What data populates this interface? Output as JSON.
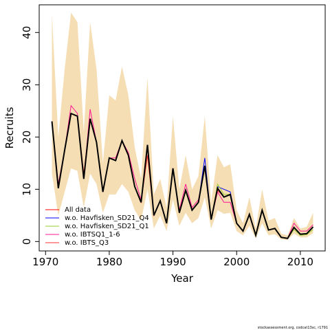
{
  "chart_data": {
    "type": "line",
    "x_label": "Year",
    "y_label": "Recruits",
    "footer": "stockassessment.org, codcat13sc, r1791",
    "x": [
      1971,
      1972,
      1973,
      1974,
      1975,
      1976,
      1977,
      1978,
      1979,
      1980,
      1981,
      1982,
      1983,
      1984,
      1985,
      1986,
      1987,
      1988,
      1989,
      1990,
      1991,
      1992,
      1993,
      1994,
      1995,
      1996,
      1997,
      1998,
      1999,
      2000,
      2001,
      2002,
      2003,
      2004,
      2005,
      2006,
      2007,
      2008,
      2009,
      2010,
      2011,
      2012
    ],
    "band": {
      "color": "#f5deb3",
      "upper": [
        43.5,
        20,
        33,
        43.8,
        42,
        21,
        42,
        33,
        15,
        28,
        27,
        33.5,
        28,
        18,
        12,
        31.5,
        9,
        12,
        6.5,
        24,
        10,
        16.5,
        10,
        12.5,
        24,
        7.5,
        16.5,
        14.2,
        14.8,
        6,
        3.5,
        8.5,
        2.5,
        10,
        4,
        4.5,
        1.5,
        1.2,
        4.5,
        2.5,
        2.8,
        5.5
      ],
      "lower": [
        13,
        5,
        9.5,
        14,
        13.5,
        6.5,
        13,
        11,
        5.5,
        9,
        9,
        11,
        9.5,
        6,
        4,
        10,
        2.5,
        5,
        2,
        8,
        3,
        5.5,
        3.5,
        4.5,
        8.5,
        2.5,
        6,
        5.3,
        5.5,
        2,
        1.2,
        3,
        0.6,
        3.5,
        1.2,
        1.4,
        0.4,
        0.3,
        1.5,
        0.8,
        0.8,
        1.6
      ]
    },
    "estimate": {
      "color": "#000000",
      "values": [
        23,
        10.2,
        17.5,
        24.5,
        24,
        12,
        23.5,
        19,
        9.5,
        16,
        15.5,
        19.3,
        16.5,
        10.5,
        7.5,
        18.5,
        5,
        7.8,
        3.5,
        14,
        5.5,
        9.8,
        6,
        7.5,
        14.5,
        4.2,
        10.2,
        8.5,
        9,
        3.5,
        2,
        5.2,
        1.2,
        6,
        2.2,
        2.5,
        0.8,
        0.6,
        2.7,
        1.4,
        1.5,
        2.8
      ]
    },
    "series": [
      {
        "name": "All data",
        "color": "#ff0000",
        "values": [
          23,
          10.2,
          17.5,
          24.5,
          24,
          12,
          23.5,
          19,
          9.5,
          16,
          15.5,
          19.3,
          16.5,
          10.5,
          7.5,
          18.5,
          5,
          7.8,
          3.5,
          14,
          5.5,
          9.8,
          6,
          7.5,
          14.5,
          4.2,
          10.2,
          8.5,
          9,
          3.5,
          2,
          5.2,
          1.2,
          6,
          2.2,
          2.5,
          0.8,
          0.6,
          2.7,
          1.4,
          1.5,
          2.8
        ]
      },
      {
        "name": "w.o. Havfisken_SD21_Q4",
        "color": "#0000ff",
        "values": [
          23,
          10.2,
          17.5,
          24.5,
          24,
          12,
          23.5,
          19,
          9.5,
          16,
          15.5,
          19.3,
          16.5,
          10.5,
          7.5,
          18.5,
          5,
          7.8,
          3.5,
          14,
          5.5,
          9.8,
          6,
          7.5,
          16,
          4.2,
          10.5,
          10,
          9.5,
          3.5,
          2,
          5.2,
          1.2,
          6,
          2.2,
          2.5,
          0.8,
          0.6,
          2.7,
          1.4,
          1.5,
          2.8
        ]
      },
      {
        "name": "w.o. Havfisken_SD21_Q1",
        "color": "#9acd32",
        "values": [
          23,
          10.2,
          17.5,
          24.5,
          24,
          12,
          23.5,
          19,
          9.5,
          16,
          15.5,
          19.3,
          16.5,
          10.5,
          7.5,
          18.5,
          5,
          7.8,
          3.5,
          14,
          5.5,
          9.8,
          6,
          7.5,
          14.5,
          4.2,
          11,
          9,
          9,
          3.5,
          2,
          5.2,
          1.2,
          6,
          2.2,
          2.5,
          0.8,
          0.6,
          2.3,
          1.2,
          1.3,
          2.3
        ]
      },
      {
        "name": "w.o. IBTSQ1_1-6",
        "color": "#ff1493",
        "values": [
          23,
          11,
          17.5,
          26,
          24.5,
          12,
          25.3,
          19,
          9.5,
          16,
          16,
          19.3,
          17,
          12,
          8,
          18,
          5,
          7.8,
          3.5,
          14,
          6,
          11,
          6.5,
          8,
          14,
          4.2,
          9.5,
          7.5,
          7.5,
          3.5,
          2,
          5.2,
          1.2,
          6,
          2.2,
          2.5,
          0.8,
          0.6,
          3.5,
          2,
          2,
          3.2
        ]
      },
      {
        "name": "w.o. IBTS_Q3",
        "color": "#ff3030",
        "values": [
          23,
          10.2,
          17.5,
          24.5,
          24,
          13,
          23.5,
          19,
          9.5,
          16,
          15.5,
          19.3,
          16.5,
          10.5,
          7.5,
          16.5,
          5,
          7.8,
          3.5,
          14,
          5.5,
          9.8,
          6,
          7.5,
          14.5,
          4.2,
          9.8,
          8.5,
          9,
          3.5,
          2,
          5.2,
          1.2,
          6,
          2.2,
          2.5,
          0.8,
          0.6,
          2.7,
          1.4,
          1.5,
          2.8
        ]
      }
    ],
    "xlim": [
      1969,
      2013.9
    ],
    "ylim": [
      -1.8,
      45.3
    ],
    "xticks": [
      1970,
      1980,
      1990,
      2000,
      2010
    ],
    "yticks": [
      0,
      10,
      20,
      30,
      40
    ]
  }
}
